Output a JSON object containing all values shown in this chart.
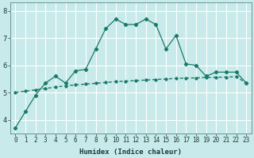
{
  "xlabel": "Humidex (Indice chaleur)",
  "background_color": "#c8eaea",
  "grid_color": "#a0d0d0",
  "line_color": "#1a7a6a",
  "x_values": [
    0,
    1,
    2,
    3,
    4,
    5,
    6,
    7,
    8,
    9,
    10,
    11,
    12,
    13,
    14,
    15,
    16,
    17,
    18,
    19,
    20,
    21,
    22,
    23
  ],
  "y_main": [
    3.7,
    4.3,
    4.9,
    5.35,
    5.6,
    5.35,
    5.8,
    5.85,
    6.6,
    7.35,
    7.7,
    7.5,
    7.5,
    7.7,
    7.5,
    6.6,
    7.1,
    6.05,
    6.0,
    5.6,
    5.75,
    5.75,
    5.75,
    5.35
  ],
  "y_trend": [
    5.0,
    5.05,
    5.1,
    5.15,
    5.2,
    5.25,
    5.28,
    5.31,
    5.34,
    5.37,
    5.4,
    5.42,
    5.44,
    5.46,
    5.48,
    5.5,
    5.52,
    5.53,
    5.54,
    5.55,
    5.56,
    5.57,
    5.58,
    5.35
  ],
  "ylim": [
    3.5,
    8.3
  ],
  "xlim": [
    -0.5,
    23.5
  ],
  "yticks": [
    4,
    5,
    6,
    7,
    8
  ],
  "xticks": [
    0,
    1,
    2,
    3,
    4,
    5,
    6,
    7,
    8,
    9,
    10,
    11,
    12,
    13,
    14,
    15,
    16,
    17,
    18,
    19,
    20,
    21,
    22,
    23
  ],
  "tick_fontsize": 5.5,
  "xlabel_fontsize": 6.5,
  "ylabel_fontsize": 6.0
}
